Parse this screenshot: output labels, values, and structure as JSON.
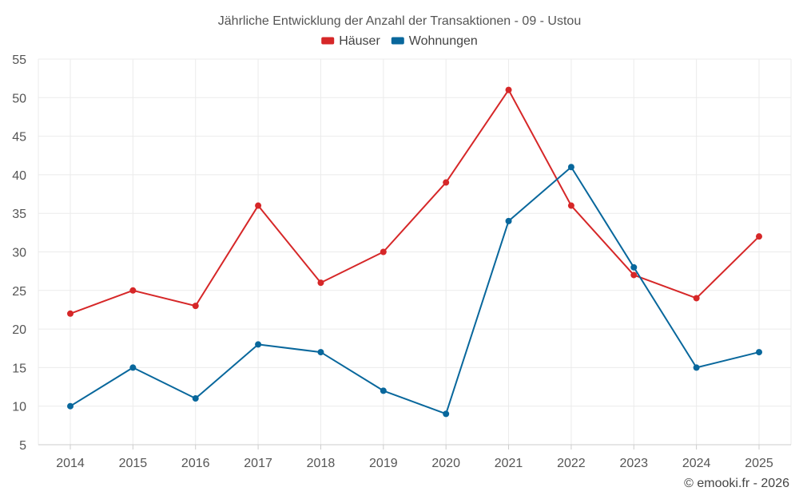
{
  "chart_data": {
    "type": "line",
    "title": "Jährliche Entwicklung der Anzahl der Transaktionen - 09 - Ustou",
    "categories": [
      "2014",
      "2015",
      "2016",
      "2017",
      "2018",
      "2019",
      "2020",
      "2021",
      "2022",
      "2023",
      "2024",
      "2025"
    ],
    "series": [
      {
        "name": "Häuser",
        "color": "#d62728",
        "values": [
          22,
          25,
          23,
          36,
          26,
          30,
          39,
          51,
          36,
          27,
          24,
          32
        ]
      },
      {
        "name": "Wohnungen",
        "color": "#08679c",
        "values": [
          10,
          15,
          11,
          18,
          17,
          12,
          9,
          34,
          41,
          28,
          15,
          17
        ]
      }
    ],
    "yticks": [
      5,
      10,
      15,
      20,
      25,
      30,
      35,
      40,
      45,
      50,
      55
    ],
    "ylim": [
      5,
      55
    ],
    "xlabel": "",
    "ylabel": "",
    "grid": true,
    "legend_position": "top-center"
  },
  "credit": "© emooki.fr - 2026"
}
